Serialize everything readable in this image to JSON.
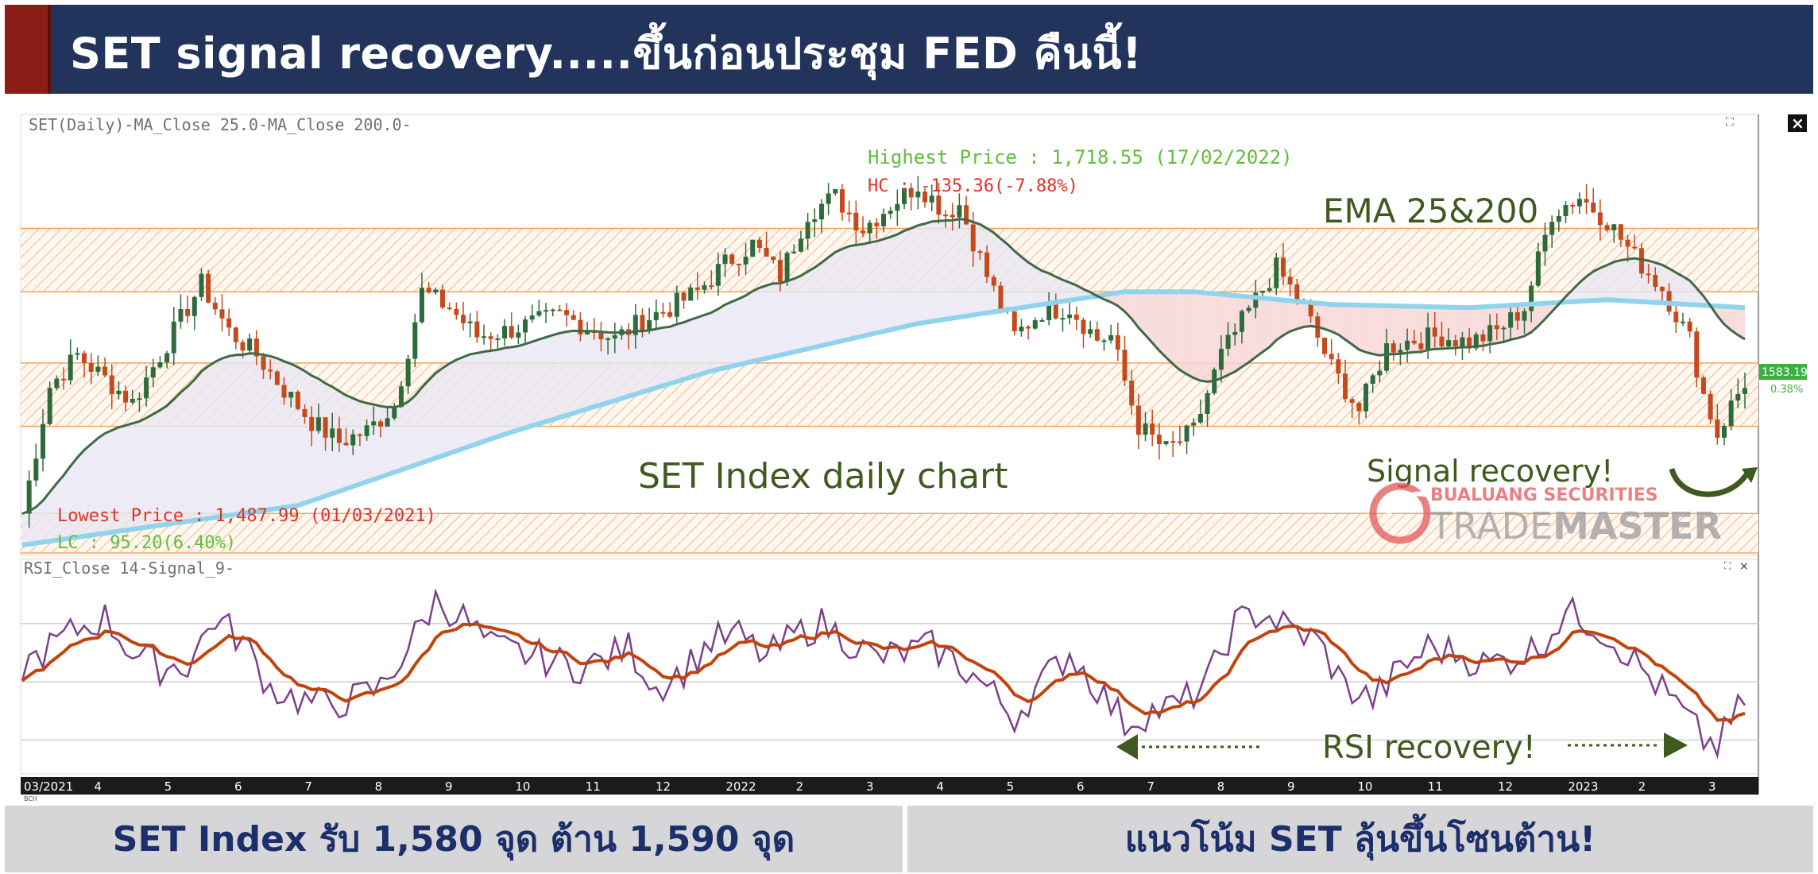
{
  "header": {
    "title": "SET signal recovery.....ขึ้นก่อนประชุม FED คืนนี้!"
  },
  "colors": {
    "header_bg": "#22345c",
    "accent_red": "#8a1e16",
    "candle_up": "#2e6b3a",
    "candle_down": "#c44a1d",
    "ema25": "#3f6a45",
    "ema200": "#8fd3ec",
    "rsi": "#7d3f8c",
    "rsi_signal": "#c1440e",
    "zone": "#f3a35c",
    "annotation_green": "#3f5a1f"
  },
  "chart_data": [
    {
      "type": "candlestick",
      "name": "SET Index daily",
      "panel_label": "SET(Daily)-MA_Close 25.0-MA_Close 200.0-",
      "x_tick_labels": [
        "03/2021",
        "4",
        "5",
        "6",
        "7",
        "8",
        "9",
        "10",
        "11",
        "12",
        "2022",
        "2",
        "3",
        "4",
        "5",
        "6",
        "7",
        "8",
        "9",
        "10",
        "11",
        "12",
        "2023",
        "2",
        "3"
      ],
      "range": {
        "start": "2021-03",
        "end": "2023-03"
      },
      "y_range": [
        1475,
        1740
      ],
      "resistance_zones": [
        [
          1640,
          1680
        ],
        [
          1555,
          1595
        ],
        [
          1475,
          1500
        ]
      ],
      "close_trend": [
        [
          0,
          1500
        ],
        [
          4,
          1580
        ],
        [
          8,
          1600
        ],
        [
          12,
          1585
        ],
        [
          16,
          1570
        ],
        [
          20,
          1600
        ],
        [
          26,
          1645
        ],
        [
          30,
          1615
        ],
        [
          34,
          1600
        ],
        [
          38,
          1578
        ],
        [
          42,
          1558
        ],
        [
          46,
          1545
        ],
        [
          50,
          1552
        ],
        [
          54,
          1568
        ],
        [
          58,
          1640
        ],
        [
          62,
          1630
        ],
        [
          66,
          1612
        ],
        [
          70,
          1615
        ],
        [
          74,
          1620
        ],
        [
          78,
          1625
        ],
        [
          82,
          1618
        ],
        [
          86,
          1610
        ],
        [
          90,
          1622
        ],
        [
          94,
          1630
        ],
        [
          98,
          1640
        ],
        [
          102,
          1658
        ],
        [
          106,
          1670
        ],
        [
          110,
          1650
        ],
        [
          114,
          1690
        ],
        [
          118,
          1700
        ],
        [
          122,
          1680
        ],
        [
          126,
          1695
        ],
        [
          130,
          1708
        ],
        [
          134,
          1690
        ],
        [
          136,
          1695
        ],
        [
          140,
          1650
        ],
        [
          144,
          1612
        ],
        [
          148,
          1628
        ],
        [
          152,
          1630
        ],
        [
          156,
          1610
        ],
        [
          158,
          1612
        ],
        [
          162,
          1555
        ],
        [
          166,
          1540
        ],
        [
          170,
          1552
        ],
        [
          174,
          1600
        ],
        [
          178,
          1628
        ],
        [
          182,
          1655
        ],
        [
          186,
          1630
        ],
        [
          190,
          1592
        ],
        [
          194,
          1565
        ],
        [
          198,
          1605
        ],
        [
          202,
          1610
        ],
        [
          206,
          1612
        ],
        [
          210,
          1608
        ],
        [
          214,
          1615
        ],
        [
          218,
          1630
        ],
        [
          222,
          1690
        ],
        [
          226,
          1700
        ],
        [
          230,
          1685
        ],
        [
          234,
          1662
        ],
        [
          238,
          1642
        ],
        [
          242,
          1610
        ],
        [
          244,
          1575
        ],
        [
          246,
          1550
        ],
        [
          248,
          1568
        ],
        [
          250,
          1583
        ]
      ],
      "series": [
        {
          "name": "MA Close 25"
        },
        {
          "name": "MA Close 200"
        }
      ],
      "last_price_label": "1583.19",
      "last_change_label": "0.38%",
      "annotations": {
        "highest_price": "Highest Price : 1,718.55 (17/02/2022)",
        "hc": "HC : -135.36(-7.88%)",
        "lowest_price": "Lowest Price : 1,487.99 (01/03/2021)",
        "lc": "LC : 95.20(6.40%)",
        "ema_label": "EMA 25&200",
        "chart_label": "SET Index daily chart",
        "signal_recovery": "Signal recovery!",
        "logo_top": "BUALUANG SECURITIES",
        "logo_bottom_a": "TRADE",
        "logo_bottom_b": "MASTER"
      }
    },
    {
      "type": "line",
      "name": "RSI",
      "panel_label": "RSI_Close 14-Signal_9-",
      "series": [
        {
          "name": "RSI Close 14"
        },
        {
          "name": "Signal 9"
        }
      ],
      "y_range": [
        20,
        85
      ],
      "gridlines": [
        70,
        50,
        30
      ],
      "rsi_trend": [
        [
          0,
          55
        ],
        [
          4,
          62
        ],
        [
          8,
          68
        ],
        [
          12,
          72
        ],
        [
          16,
          60
        ],
        [
          20,
          55
        ],
        [
          24,
          56
        ],
        [
          28,
          72
        ],
        [
          32,
          64
        ],
        [
          36,
          48
        ],
        [
          40,
          44
        ],
        [
          44,
          42
        ],
        [
          48,
          44
        ],
        [
          52,
          48
        ],
        [
          56,
          62
        ],
        [
          60,
          78
        ],
        [
          64,
          72
        ],
        [
          68,
          62
        ],
        [
          72,
          60
        ],
        [
          76,
          58
        ],
        [
          80,
          55
        ],
        [
          84,
          57
        ],
        [
          88,
          62
        ],
        [
          92,
          48
        ],
        [
          96,
          54
        ],
        [
          100,
          64
        ],
        [
          104,
          66
        ],
        [
          108,
          58
        ],
        [
          112,
          66
        ],
        [
          116,
          70
        ],
        [
          120,
          64
        ],
        [
          124,
          58
        ],
        [
          128,
          60
        ],
        [
          132,
          62
        ],
        [
          136,
          56
        ],
        [
          140,
          48
        ],
        [
          144,
          38
        ],
        [
          148,
          50
        ],
        [
          152,
          60
        ],
        [
          156,
          48
        ],
        [
          160,
          36
        ],
        [
          164,
          40
        ],
        [
          168,
          42
        ],
        [
          172,
          50
        ],
        [
          176,
          70
        ],
        [
          180,
          74
        ],
        [
          184,
          68
        ],
        [
          188,
          64
        ],
        [
          192,
          48
        ],
        [
          196,
          44
        ],
        [
          200,
          54
        ],
        [
          204,
          62
        ],
        [
          208,
          60
        ],
        [
          212,
          56
        ],
        [
          216,
          58
        ],
        [
          220,
          62
        ],
        [
          224,
          74
        ],
        [
          228,
          70
        ],
        [
          232,
          62
        ],
        [
          236,
          52
        ],
        [
          240,
          42
        ],
        [
          244,
          30
        ],
        [
          246,
          28
        ],
        [
          248,
          36
        ],
        [
          250,
          44
        ]
      ],
      "annotations": {
        "rsi_recovery": "RSI recovery!"
      }
    }
  ],
  "footer": {
    "left": "SET Index รับ 1,580 จุด ต้าน 1,590 จุด",
    "right": "แนวโน้ม SET ลุ้นขึ้นโซนต้าน!"
  }
}
